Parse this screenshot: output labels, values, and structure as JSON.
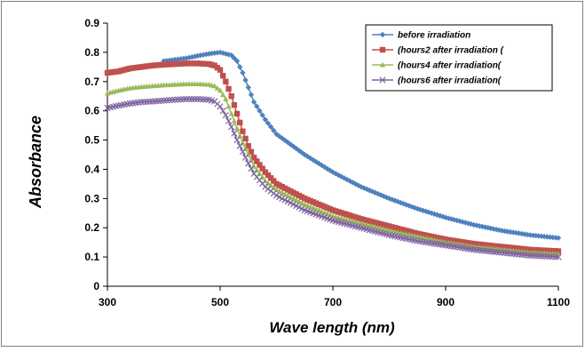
{
  "chart_data": {
    "type": "line",
    "xlabel": "Wave length  (nm)",
    "ylabel": "Absorbance",
    "xlim": [
      300,
      1100
    ],
    "ylim": [
      0,
      0.9
    ],
    "xticks": [
      300,
      500,
      700,
      900,
      1100
    ],
    "yticks": [
      0,
      0.1,
      0.2,
      0.3,
      0.4,
      0.5,
      0.6,
      0.7,
      0.8,
      0.9
    ],
    "grid": false,
    "legend_position": "top-right",
    "series": [
      {
        "name": "before irradiation",
        "color": "#4f81bd",
        "marker": "diamond",
        "x": [
          400,
          420,
          440,
          460,
          480,
          500,
          520,
          530,
          540,
          550,
          560,
          580,
          600,
          650,
          700,
          750,
          800,
          850,
          900,
          950,
          1000,
          1050,
          1100
        ],
        "y": [
          0.77,
          0.775,
          0.78,
          0.788,
          0.795,
          0.8,
          0.79,
          0.77,
          0.73,
          0.68,
          0.63,
          0.57,
          0.52,
          0.45,
          0.39,
          0.34,
          0.3,
          0.265,
          0.235,
          0.21,
          0.19,
          0.175,
          0.165
        ]
      },
      {
        "name": "(hours2 after irradiation (",
        "color": "#c0504d",
        "marker": "square",
        "x": [
          300,
          320,
          340,
          360,
          380,
          400,
          420,
          440,
          460,
          480,
          490,
          500,
          510,
          520,
          530,
          540,
          550,
          560,
          580,
          600,
          650,
          700,
          750,
          800,
          850,
          900,
          950,
          1000,
          1050,
          1100
        ],
        "y": [
          0.73,
          0.735,
          0.745,
          0.75,
          0.755,
          0.758,
          0.76,
          0.762,
          0.762,
          0.76,
          0.755,
          0.74,
          0.7,
          0.65,
          0.59,
          0.53,
          0.48,
          0.44,
          0.39,
          0.35,
          0.3,
          0.26,
          0.23,
          0.205,
          0.18,
          0.16,
          0.145,
          0.135,
          0.125,
          0.12
        ]
      },
      {
        "name": "(hours4 after irradiation(",
        "color": "#9bbb59",
        "marker": "triangle",
        "x": [
          300,
          320,
          340,
          360,
          380,
          400,
          420,
          440,
          460,
          480,
          490,
          500,
          510,
          520,
          530,
          540,
          550,
          560,
          580,
          600,
          650,
          700,
          750,
          800,
          850,
          900,
          950,
          1000,
          1050,
          1100
        ],
        "y": [
          0.66,
          0.67,
          0.678,
          0.682,
          0.685,
          0.688,
          0.69,
          0.692,
          0.692,
          0.69,
          0.685,
          0.67,
          0.64,
          0.59,
          0.54,
          0.49,
          0.45,
          0.41,
          0.36,
          0.33,
          0.28,
          0.24,
          0.215,
          0.19,
          0.17,
          0.15,
          0.135,
          0.125,
          0.115,
          0.11
        ]
      },
      {
        "name": "(hours6 after irradiation(",
        "color": "#8064a2",
        "marker": "x",
        "x": [
          300,
          320,
          340,
          360,
          380,
          400,
          420,
          440,
          460,
          480,
          490,
          500,
          510,
          520,
          530,
          540,
          550,
          560,
          580,
          600,
          650,
          700,
          750,
          800,
          850,
          900,
          950,
          1000,
          1050,
          1100
        ],
        "y": [
          0.61,
          0.618,
          0.625,
          0.63,
          0.632,
          0.635,
          0.638,
          0.64,
          0.64,
          0.638,
          0.632,
          0.615,
          0.585,
          0.545,
          0.5,
          0.46,
          0.42,
          0.385,
          0.34,
          0.31,
          0.26,
          0.225,
          0.2,
          0.175,
          0.155,
          0.14,
          0.125,
          0.115,
          0.105,
          0.1
        ]
      }
    ]
  }
}
